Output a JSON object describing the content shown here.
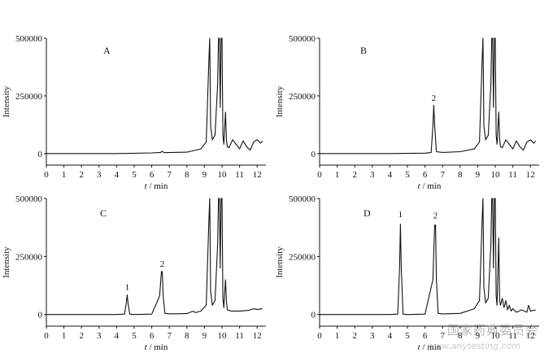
{
  "watermark": {
    "text": "国家药典委员会",
    "site": "www.anytesting.com"
  },
  "chart_data": [
    {
      "type": "line",
      "panel": "A",
      "xlabel_italic": "t",
      "xlabel_rest": " / min",
      "ylabel": "Intensity",
      "xlim": [
        0,
        12.5
      ],
      "ylim": [
        -50000,
        500000
      ],
      "xticks": [
        "0",
        "1",
        "2",
        "3",
        "4",
        "5",
        "6",
        "7",
        "8",
        "9",
        "10",
        "11",
        "12"
      ],
      "yticks": [
        "0",
        "250000",
        "500000"
      ],
      "peak_labels": [],
      "series": [
        {
          "x": [
            0,
            2,
            4,
            6,
            6.5,
            6.6,
            6.7,
            8,
            8.8,
            9.1,
            9.25,
            9.3,
            9.35,
            9.45,
            9.6,
            9.75,
            9.8,
            9.85,
            9.9,
            9.95,
            10.0,
            10.05,
            10.1,
            10.2,
            10.25,
            10.3,
            10.4,
            10.6,
            10.8,
            11.0,
            11.2,
            11.4,
            11.6,
            11.8,
            12.0,
            12.2,
            12.3
          ],
          "y": [
            0,
            0,
            0,
            3000,
            5000,
            10000,
            4000,
            6000,
            20000,
            50000,
            400000,
            500000,
            120000,
            60000,
            80000,
            300000,
            500000,
            500000,
            200000,
            500000,
            500000,
            80000,
            40000,
            180000,
            60000,
            30000,
            25000,
            60000,
            40000,
            20000,
            55000,
            30000,
            15000,
            50000,
            60000,
            45000,
            55000
          ]
        }
      ]
    },
    {
      "type": "line",
      "panel": "B",
      "xlabel_italic": "t",
      "xlabel_rest": " / min",
      "ylabel": "Intensity",
      "xlim": [
        0,
        12.5
      ],
      "ylim": [
        -50000,
        500000
      ],
      "xticks": [
        "0",
        "1",
        "2",
        "3",
        "4",
        "5",
        "6",
        "7",
        "8",
        "9",
        "10",
        "11",
        "12"
      ],
      "yticks": [
        "0",
        "250000",
        "500000"
      ],
      "peak_labels": [
        {
          "text": "2",
          "x": 6.5,
          "y": 215000
        }
      ],
      "series": [
        {
          "x": [
            0,
            2,
            4,
            6,
            6.35,
            6.45,
            6.5,
            6.55,
            6.65,
            7,
            8,
            8.8,
            9.1,
            9.25,
            9.3,
            9.35,
            9.45,
            9.6,
            9.75,
            9.8,
            9.85,
            9.9,
            9.95,
            10.0,
            10.05,
            10.1,
            10.2,
            10.25,
            10.3,
            10.4,
            10.6,
            10.8,
            11.0,
            11.2,
            11.4,
            11.6,
            11.8,
            12.0,
            12.2,
            12.3
          ],
          "y": [
            0,
            0,
            0,
            2000,
            5000,
            120000,
            210000,
            120000,
            8000,
            5000,
            8000,
            20000,
            50000,
            400000,
            500000,
            120000,
            60000,
            80000,
            300000,
            500000,
            500000,
            200000,
            500000,
            500000,
            80000,
            40000,
            180000,
            60000,
            30000,
            25000,
            60000,
            40000,
            20000,
            55000,
            30000,
            15000,
            50000,
            60000,
            45000,
            55000
          ]
        }
      ]
    },
    {
      "type": "line",
      "panel": "C",
      "xlabel_italic": "t",
      "xlabel_rest": " / min",
      "ylabel": "Intensity",
      "xlim": [
        0,
        12.5
      ],
      "ylim": [
        -50000,
        500000
      ],
      "xticks": [
        "0",
        "1",
        "2",
        "3",
        "4",
        "5",
        "6",
        "7",
        "8",
        "9",
        "10",
        "11",
        "12"
      ],
      "yticks": [
        "0",
        "250000",
        "500000"
      ],
      "peak_labels": [
        {
          "text": "1",
          "x": 4.6,
          "y": 92000
        },
        {
          "text": "2",
          "x": 6.6,
          "y": 192000
        }
      ],
      "series": [
        {
          "x": [
            0,
            2,
            4,
            4.45,
            4.55,
            4.6,
            4.65,
            4.75,
            5,
            6,
            6.45,
            6.55,
            6.6,
            6.65,
            6.75,
            7,
            8,
            8.2,
            8.35,
            8.5,
            8.8,
            9.1,
            9.25,
            9.3,
            9.35,
            9.45,
            9.6,
            9.75,
            9.8,
            9.85,
            9.9,
            9.95,
            10.0,
            10.05,
            10.1,
            10.2,
            10.25,
            10.3,
            10.5,
            11,
            11.5,
            11.8,
            12.0,
            12.3
          ],
          "y": [
            0,
            0,
            0,
            2000,
            50000,
            85000,
            50000,
            2000,
            0,
            2000,
            80000,
            185000,
            185000,
            80000,
            5000,
            3000,
            4000,
            10000,
            14000,
            8000,
            15000,
            40000,
            400000,
            500000,
            100000,
            40000,
            60000,
            300000,
            500000,
            500000,
            200000,
            500000,
            500000,
            70000,
            30000,
            150000,
            60000,
            20000,
            15000,
            15000,
            18000,
            25000,
            22000,
            25000
          ]
        }
      ]
    },
    {
      "type": "line",
      "panel": "D",
      "xlabel_italic": "t",
      "xlabel_rest": " / min",
      "ylabel": "Intensity",
      "xlim": [
        0,
        12.5
      ],
      "ylim": [
        -50000,
        500000
      ],
      "xticks": [
        "0",
        "1",
        "2",
        "3",
        "4",
        "5",
        "6",
        "7",
        "8",
        "9",
        "10",
        "11",
        "12"
      ],
      "yticks": [
        "0",
        "250000",
        "500000"
      ],
      "peak_labels": [
        {
          "text": "1",
          "x": 4.6,
          "y": 405000
        },
        {
          "text": "2",
          "x": 6.6,
          "y": 400000
        }
      ],
      "series": [
        {
          "x": [
            0,
            2,
            4,
            4.45,
            4.55,
            4.6,
            4.65,
            4.75,
            5,
            6,
            6.45,
            6.55,
            6.6,
            6.65,
            6.75,
            7,
            8,
            8.8,
            9.1,
            9.25,
            9.3,
            9.35,
            9.45,
            9.6,
            9.75,
            9.8,
            9.85,
            9.9,
            9.95,
            10.0,
            10.05,
            10.1,
            10.2,
            10.25,
            10.3,
            10.4,
            10.5,
            10.6,
            10.7,
            10.8,
            10.9,
            11.0,
            11.2,
            11.5,
            11.8,
            11.9,
            12.0,
            12.3
          ],
          "y": [
            0,
            0,
            0,
            2000,
            200000,
            390000,
            200000,
            2000,
            0,
            2000,
            150000,
            385000,
            385000,
            150000,
            5000,
            3000,
            5000,
            25000,
            60000,
            400000,
            500000,
            120000,
            50000,
            70000,
            300000,
            500000,
            500000,
            200000,
            500000,
            500000,
            80000,
            40000,
            330000,
            60000,
            40000,
            70000,
            30000,
            60000,
            20000,
            40000,
            15000,
            25000,
            10000,
            20000,
            10000,
            40000,
            15000,
            20000
          ]
        }
      ]
    }
  ]
}
